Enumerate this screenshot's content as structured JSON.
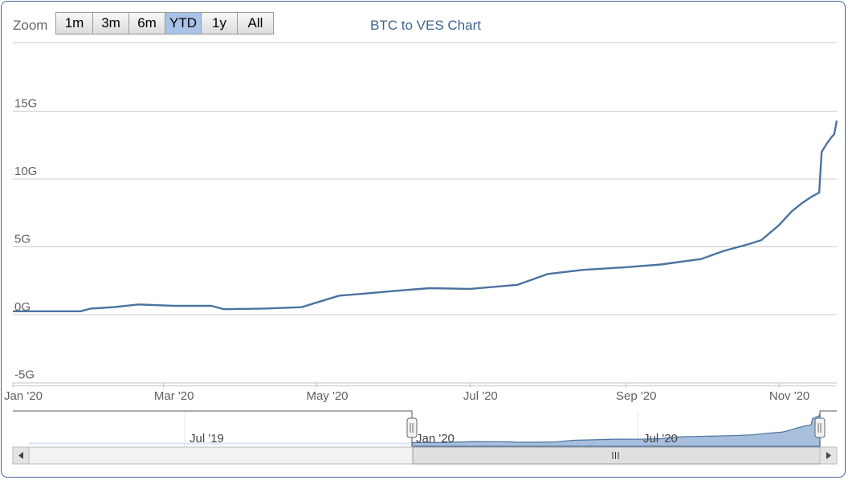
{
  "zoom": {
    "label": "Zoom",
    "buttons": [
      {
        "label": "1m",
        "active": false
      },
      {
        "label": "3m",
        "active": false
      },
      {
        "label": "6m",
        "active": false
      },
      {
        "label": "YTD",
        "active": true
      },
      {
        "label": "1y",
        "active": false
      },
      {
        "label": "All",
        "active": false
      }
    ]
  },
  "navigator": {
    "labels": [
      "Jul '19",
      "Jan '20",
      "Jul '20"
    ],
    "scroll_handle_icon": "grip-icon",
    "left_arrow_icon": "arrow-left-icon",
    "right_arrow_icon": "arrow-right-icon"
  },
  "colors": {
    "line": "#4b73a0",
    "navigator_fill": "#a7bfdc",
    "grid": "#cccccc",
    "active_button": "#a9c3e8"
  },
  "chart_data": {
    "type": "line",
    "title": "BTC to VES Chart",
    "xlabel": "",
    "ylabel": "",
    "ylim": [
      -5,
      20
    ],
    "y_unit": "G",
    "yticks": [
      "-5G",
      "0G",
      "5G",
      "10G",
      "15G"
    ],
    "xticks": [
      "Jan '20",
      "Mar '20",
      "May '20",
      "Jul '20",
      "Sep '20",
      "Nov '20"
    ],
    "xlim": [
      "2020-01-01",
      "2020-11-24"
    ],
    "grid": true,
    "legend": "none",
    "series": [
      {
        "points": [
          [
            "2020-01-01",
            0.25
          ],
          [
            "2020-01-15",
            0.25
          ],
          [
            "2020-01-28",
            0.25
          ],
          [
            "2020-02-01",
            0.45
          ],
          [
            "2020-02-10",
            0.55
          ],
          [
            "2020-02-20",
            0.75
          ],
          [
            "2020-03-05",
            0.65
          ],
          [
            "2020-03-20",
            0.65
          ],
          [
            "2020-03-25",
            0.4
          ],
          [
            "2020-04-10",
            0.45
          ],
          [
            "2020-04-25",
            0.55
          ],
          [
            "2020-05-01",
            0.9
          ],
          [
            "2020-05-10",
            1.4
          ],
          [
            "2020-05-20",
            1.55
          ],
          [
            "2020-06-01",
            1.75
          ],
          [
            "2020-06-15",
            1.95
          ],
          [
            "2020-07-01",
            1.9
          ],
          [
            "2020-07-20",
            2.2
          ],
          [
            "2020-08-01",
            3.0
          ],
          [
            "2020-08-15",
            3.3
          ],
          [
            "2020-09-01",
            3.5
          ],
          [
            "2020-09-15",
            3.7
          ],
          [
            "2020-10-01",
            4.1
          ],
          [
            "2020-10-10",
            4.7
          ],
          [
            "2020-10-20",
            5.2
          ],
          [
            "2020-10-25",
            5.5
          ],
          [
            "2020-11-01",
            6.6
          ],
          [
            "2020-11-06",
            7.6
          ],
          [
            "2020-11-10",
            8.2
          ],
          [
            "2020-11-14",
            8.7
          ],
          [
            "2020-11-17",
            9.0
          ],
          [
            "2020-11-18",
            12.0
          ],
          [
            "2020-11-20",
            12.6
          ],
          [
            "2020-11-22",
            13.1
          ],
          [
            "2020-11-23",
            13.3
          ],
          [
            "2020-11-24",
            14.3
          ]
        ]
      }
    ]
  }
}
